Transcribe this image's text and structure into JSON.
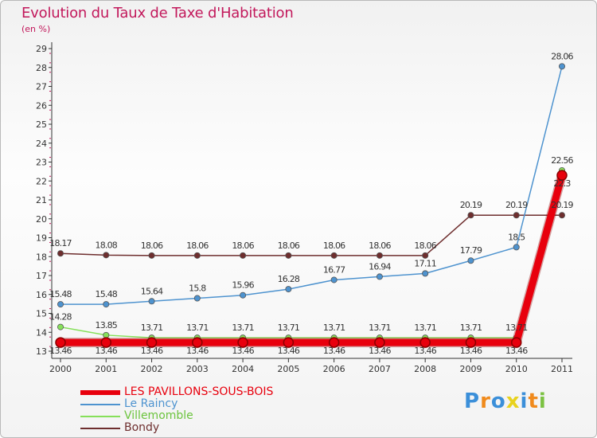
{
  "header": {
    "title": "Evolution du Taux de Taxe d'Habitation",
    "subtitle": "(en %)"
  },
  "logo": {
    "letters": [
      "P",
      "r",
      "o",
      "x",
      "i",
      "t",
      "i"
    ],
    "colors": [
      "#3b8fd9",
      "#f08a1c",
      "#3b8fd9",
      "#e8d21e",
      "#3b8fd9",
      "#f08a1c",
      "#7cc242"
    ]
  },
  "chart_data": {
    "type": "line",
    "title": "Evolution du Taux de Taxe d'Habitation",
    "ylabel": "(en %)",
    "xlabel": "",
    "categories": [
      "2000",
      "2001",
      "2002",
      "2003",
      "2004",
      "2005",
      "2006",
      "2007",
      "2008",
      "2009",
      "2010",
      "2011"
    ],
    "ylim": [
      13,
      29
    ],
    "yticks": [
      "13",
      "14",
      "15",
      "16",
      "17",
      "18",
      "19",
      "20",
      "21",
      "22",
      "23",
      "24",
      "25",
      "26",
      "27",
      "28",
      "29"
    ],
    "grid": false,
    "legend_placement": "bottom-left",
    "series": [
      {
        "name": "LES PAVILLONS-SOUS-BOIS",
        "color": "#e8000d",
        "values": [
          13.46,
          13.46,
          13.46,
          13.46,
          13.46,
          13.46,
          13.46,
          13.46,
          13.46,
          13.46,
          13.46,
          22.3
        ],
        "labels": [
          "13.46",
          "13.46",
          "13.46",
          "13.46",
          "13.46",
          "13.46",
          "13.46",
          "13.46",
          "13.46",
          "13.46",
          "13.46",
          "22.3"
        ]
      },
      {
        "name": "Le Raincy",
        "color": "#4e93cf",
        "values": [
          15.48,
          15.48,
          15.64,
          15.8,
          15.96,
          16.28,
          16.77,
          16.94,
          17.11,
          17.79,
          18.5,
          28.06
        ],
        "labels": [
          "15.48",
          "15.48",
          "15.64",
          "15.8",
          "15.96",
          "16.28",
          "16.77",
          "16.94",
          "17.11",
          "17.79",
          "18.5",
          "28.06"
        ]
      },
      {
        "name": "Villemomble",
        "color": "#86e05a",
        "values": [
          14.28,
          13.85,
          13.71,
          13.71,
          13.71,
          13.71,
          13.71,
          13.71,
          13.71,
          13.71,
          13.71,
          22.56
        ],
        "labels": [
          "14.28",
          "13.85",
          "13.71",
          "13.71",
          "13.71",
          "13.71",
          "13.71",
          "13.71",
          "13.71",
          "13.71",
          "13.71",
          "22.56"
        ]
      },
      {
        "name": "Bondy",
        "color": "#6e2e2e",
        "values": [
          18.17,
          18.08,
          18.06,
          18.06,
          18.06,
          18.06,
          18.06,
          18.06,
          18.06,
          20.19,
          20.19,
          20.19
        ],
        "labels": [
          "18.17",
          "18.08",
          "18.06",
          "18.06",
          "18.06",
          "18.06",
          "18.06",
          "18.06",
          "18.06",
          "20.19",
          "20.19",
          "20.19"
        ]
      }
    ]
  }
}
